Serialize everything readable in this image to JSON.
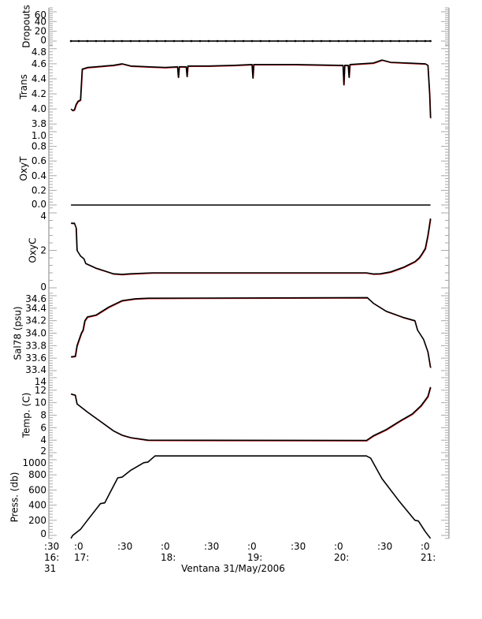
{
  "chart_data": {
    "type": "line",
    "title": "",
    "xlabel": "Ventana 31/May/2006",
    "xlim": [
      16.655,
      21.273
    ],
    "x_ticks": [
      {
        "t": 16.655,
        "lines": [
          ":30",
          "16:",
          "31"
        ]
      },
      {
        "t": 17.0,
        "lines": [
          ":0",
          "17:"
        ]
      },
      {
        "t": 17.5,
        "lines": [
          ":30"
        ]
      },
      {
        "t": 18.0,
        "lines": [
          ":0",
          "18:"
        ]
      },
      {
        "t": 18.5,
        "lines": [
          ":30"
        ]
      },
      {
        "t": 19.0,
        "lines": [
          ":0",
          "19:"
        ]
      },
      {
        "t": 19.5,
        "lines": [
          ":30"
        ]
      },
      {
        "t": 20.0,
        "lines": [
          ":0",
          "20:"
        ]
      },
      {
        "t": 20.5,
        "lines": [
          ":30"
        ]
      },
      {
        "t": 21.0,
        "lines": [
          ":0",
          "21:"
        ]
      }
    ],
    "colors": {
      "axis": "#aaaaaa",
      "line": "#000000",
      "raw": "#e02020"
    },
    "panels": [
      {
        "name": "Dropouts",
        "ylabel": "Dropouts",
        "ylim": [
          -8,
          68
        ],
        "ticks": [
          0,
          20,
          40,
          60
        ],
        "tick_labels": [
          "0",
          "20",
          "40",
          "60"
        ],
        "minor": 4,
        "markers": true,
        "series": [
          [
            16.91,
            0
          ],
          [
            17.0,
            0
          ],
          [
            17.1,
            0
          ],
          [
            17.2,
            0
          ],
          [
            17.3,
            0
          ],
          [
            17.4,
            0
          ],
          [
            17.5,
            0
          ],
          [
            17.6,
            0
          ],
          [
            17.7,
            0
          ],
          [
            17.8,
            0
          ],
          [
            17.9,
            0
          ],
          [
            18.0,
            0
          ],
          [
            18.1,
            0
          ],
          [
            18.2,
            0
          ],
          [
            18.3,
            0
          ],
          [
            18.4,
            0
          ],
          [
            18.5,
            0
          ],
          [
            18.6,
            0
          ],
          [
            18.7,
            0
          ],
          [
            18.8,
            0
          ],
          [
            18.9,
            0
          ],
          [
            19.0,
            0
          ],
          [
            19.1,
            0
          ],
          [
            19.2,
            0
          ],
          [
            19.3,
            0
          ],
          [
            19.4,
            0
          ],
          [
            19.5,
            0
          ],
          [
            19.6,
            0
          ],
          [
            19.7,
            0
          ],
          [
            19.8,
            0
          ],
          [
            19.9,
            0
          ],
          [
            20.0,
            0
          ],
          [
            20.1,
            0
          ],
          [
            20.2,
            0
          ],
          [
            20.3,
            0
          ],
          [
            20.4,
            0
          ],
          [
            20.5,
            0
          ],
          [
            20.6,
            0
          ],
          [
            20.7,
            0
          ],
          [
            20.8,
            0
          ],
          [
            20.9,
            0
          ],
          [
            21.0,
            0
          ],
          [
            21.06,
            0
          ]
        ]
      },
      {
        "name": "Trans",
        "ylabel": "Trans",
        "ylim": [
          3.74,
          4.85
        ],
        "ticks": [
          3.8,
          4.0,
          4.2,
          4.4,
          4.6,
          4.8
        ],
        "tick_labels": [
          "3.8",
          "4.0",
          "4.2",
          "4.4",
          "4.6",
          "4.8"
        ],
        "minor": 4,
        "series": [
          [
            16.91,
            4.0
          ],
          [
            16.93,
            3.98
          ],
          [
            16.95,
            3.99
          ],
          [
            16.97,
            4.06
          ],
          [
            16.99,
            4.1
          ],
          [
            17.02,
            4.12
          ],
          [
            17.04,
            4.53
          ],
          [
            17.1,
            4.55
          ],
          [
            17.2,
            4.56
          ],
          [
            17.3,
            4.57
          ],
          [
            17.4,
            4.58
          ],
          [
            17.5,
            4.6
          ],
          [
            17.6,
            4.57
          ],
          [
            17.8,
            4.56
          ],
          [
            18.0,
            4.55
          ],
          [
            18.14,
            4.56
          ],
          [
            18.15,
            4.42
          ],
          [
            18.16,
            4.56
          ],
          [
            18.24,
            4.56
          ],
          [
            18.25,
            4.43
          ],
          [
            18.26,
            4.57
          ],
          [
            18.5,
            4.57
          ],
          [
            18.8,
            4.58
          ],
          [
            19.0,
            4.59
          ],
          [
            19.01,
            4.41
          ],
          [
            19.02,
            4.59
          ],
          [
            19.5,
            4.59
          ],
          [
            20.0,
            4.58
          ],
          [
            20.05,
            4.58
          ],
          [
            20.06,
            4.32
          ],
          [
            20.07,
            4.58
          ],
          [
            20.11,
            4.58
          ],
          [
            20.12,
            4.42
          ],
          [
            20.13,
            4.59
          ],
          [
            20.4,
            4.61
          ],
          [
            20.5,
            4.65
          ],
          [
            20.6,
            4.62
          ],
          [
            20.8,
            4.61
          ],
          [
            21.0,
            4.6
          ],
          [
            21.03,
            4.58
          ],
          [
            21.05,
            4.2
          ],
          [
            21.06,
            3.88
          ]
        ]
      },
      {
        "name": "OxyT",
        "ylabel": "OxyT",
        "ylim": [
          -0.054,
          1.043
        ],
        "ticks": [
          0,
          0.2,
          0.4,
          0.6,
          0.8,
          1.0
        ],
        "tick_labels": [
          "0.0",
          "0.2",
          "0.4",
          "0.6",
          "0.8",
          "1.0"
        ],
        "minor": 4,
        "series": [
          [
            16.91,
            0
          ],
          [
            21.06,
            0
          ]
        ]
      },
      {
        "name": "OxyC",
        "ylabel": "OxyC",
        "ylim": [
          -0.21,
          4.21
        ],
        "ticks": [
          0,
          2,
          4
        ],
        "tick_labels": [
          "0",
          "2",
          "4"
        ],
        "minor": 4,
        "series": [
          [
            16.91,
            3.45
          ],
          [
            16.95,
            3.45
          ],
          [
            16.97,
            3.2
          ],
          [
            16.98,
            2.0
          ],
          [
            17.02,
            1.7
          ],
          [
            17.06,
            1.55
          ],
          [
            17.08,
            1.3
          ],
          [
            17.2,
            1.05
          ],
          [
            17.3,
            0.9
          ],
          [
            17.4,
            0.75
          ],
          [
            17.5,
            0.72
          ],
          [
            17.6,
            0.75
          ],
          [
            17.85,
            0.8
          ],
          [
            20.32,
            0.8
          ],
          [
            20.4,
            0.74
          ],
          [
            20.48,
            0.75
          ],
          [
            20.6,
            0.85
          ],
          [
            20.75,
            1.1
          ],
          [
            20.88,
            1.4
          ],
          [
            20.93,
            1.6
          ],
          [
            20.96,
            1.8
          ],
          [
            21.0,
            2.1
          ],
          [
            21.03,
            2.8
          ],
          [
            21.06,
            3.7
          ]
        ]
      },
      {
        "name": "Sal78",
        "ylabel": "Sal78 (psu)",
        "ylim": [
          33.337,
          34.663
        ],
        "ticks": [
          33.4,
          33.6,
          33.8,
          34.0,
          34.2,
          34.4,
          34.6
        ],
        "tick_labels": [
          "33.4",
          "33.6",
          "33.8",
          "34.0",
          "34.2",
          "34.4",
          "34.6"
        ],
        "minor": 4,
        "series": [
          [
            16.91,
            33.62
          ],
          [
            16.96,
            33.63
          ],
          [
            16.98,
            33.8
          ],
          [
            17.03,
            34.0
          ],
          [
            17.05,
            34.05
          ],
          [
            17.07,
            34.2
          ],
          [
            17.1,
            34.26
          ],
          [
            17.2,
            34.29
          ],
          [
            17.35,
            34.42
          ],
          [
            17.5,
            34.52
          ],
          [
            17.65,
            34.55
          ],
          [
            17.8,
            34.56
          ],
          [
            20.33,
            34.57
          ],
          [
            20.4,
            34.48
          ],
          [
            20.55,
            34.35
          ],
          [
            20.75,
            34.25
          ],
          [
            20.88,
            34.2
          ],
          [
            20.91,
            34.05
          ],
          [
            20.98,
            33.9
          ],
          [
            21.03,
            33.7
          ],
          [
            21.06,
            33.45
          ]
        ]
      },
      {
        "name": "Temp",
        "ylabel": "Temp. (C)",
        "ylim": [
          1.5,
          14.5
        ],
        "ticks": [
          2,
          4,
          6,
          8,
          10,
          12,
          14
        ],
        "tick_labels": [
          "2",
          "4",
          "6",
          "8",
          "10",
          "12",
          "14"
        ],
        "minor": 4,
        "series": [
          [
            16.91,
            11.4
          ],
          [
            16.96,
            11.2
          ],
          [
            16.98,
            9.8
          ],
          [
            17.1,
            8.5
          ],
          [
            17.25,
            7.0
          ],
          [
            17.4,
            5.5
          ],
          [
            17.5,
            4.8
          ],
          [
            17.6,
            4.4
          ],
          [
            17.8,
            4.0
          ],
          [
            20.32,
            3.95
          ],
          [
            20.4,
            4.7
          ],
          [
            20.55,
            5.7
          ],
          [
            20.7,
            7.0
          ],
          [
            20.85,
            8.2
          ],
          [
            20.95,
            9.5
          ],
          [
            21.03,
            11.0
          ],
          [
            21.06,
            12.5
          ]
        ]
      },
      {
        "name": "Press",
        "ylabel": "Press. (db)",
        "ylim": [
          -42,
          1052
        ],
        "ticks": [
          0,
          200,
          400,
          600,
          800,
          1000
        ],
        "tick_labels": [
          "0",
          "200",
          "400",
          "600",
          "800",
          "1000"
        ],
        "minor": 4,
        "series": [
          [
            16.91,
            -40
          ],
          [
            16.93,
            0
          ],
          [
            17.02,
            80
          ],
          [
            17.1,
            200
          ],
          [
            17.25,
            420
          ],
          [
            17.3,
            430
          ],
          [
            17.45,
            760
          ],
          [
            17.5,
            770
          ],
          [
            17.6,
            860
          ],
          [
            17.75,
            960
          ],
          [
            17.8,
            970
          ],
          [
            17.88,
            1050
          ],
          [
            20.32,
            1050
          ],
          [
            20.37,
            1020
          ],
          [
            20.5,
            750
          ],
          [
            20.7,
            450
          ],
          [
            20.88,
            200
          ],
          [
            20.92,
            190
          ],
          [
            21.0,
            50
          ],
          [
            21.06,
            -40
          ]
        ]
      }
    ]
  }
}
